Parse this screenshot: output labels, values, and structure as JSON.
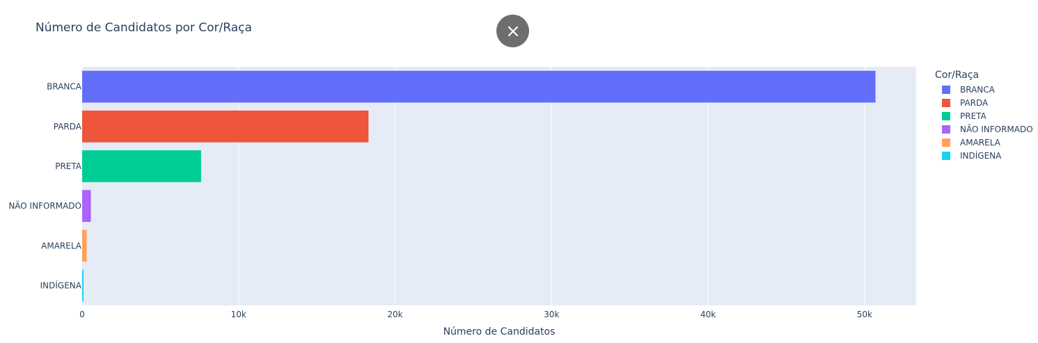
{
  "close_button": {
    "icon": "close-icon"
  },
  "chart_data": {
    "type": "bar",
    "orientation": "horizontal",
    "title": "Número de Candidatos por Cor/Raça",
    "xlabel": "Número de Candidatos",
    "ylabel": "",
    "categories": [
      "BRANCA",
      "PARDA",
      "PRETA",
      "NÃO INFORMADO",
      "AMARELA",
      "INDÍGENA"
    ],
    "values": [
      50700,
      18300,
      7600,
      560,
      290,
      90
    ],
    "colors": [
      "#636efa",
      "#ef553b",
      "#00cc96",
      "#ab63fa",
      "#ffa15a",
      "#19d3f3"
    ],
    "xlim": [
      0,
      53300
    ],
    "xticks": [
      0,
      10000,
      20000,
      30000,
      40000,
      50000
    ],
    "xtick_labels": [
      "0",
      "10k",
      "20k",
      "30k",
      "40k",
      "50k"
    ],
    "grid": true,
    "legend": {
      "title": "Cor/Raça",
      "placement": "right",
      "items": [
        "BRANCA",
        "PARDA",
        "PRETA",
        "NÃO INFORMADO",
        "AMARELA",
        "INDÍGENA"
      ]
    }
  }
}
